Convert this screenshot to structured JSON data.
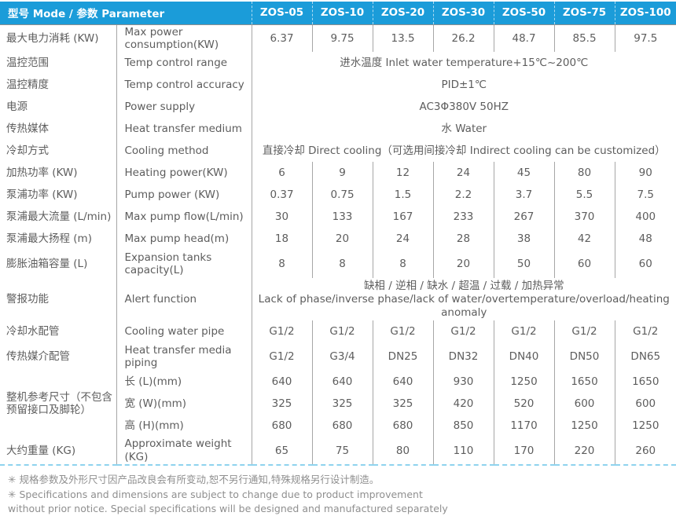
{
  "table": {
    "header": {
      "param_label": "型号 Mode / 参数 Parameter",
      "models": [
        "ZOS-05",
        "ZOS-10",
        "ZOS-20",
        "ZOS-30",
        "ZOS-50",
        "ZOS-75",
        "ZOS-100"
      ]
    },
    "rows": {
      "max_power": {
        "zh": "最大电力消耗 (KW)",
        "en": "Max power consumption(KW)",
        "values": [
          "6.37",
          "9.75",
          "13.5",
          "26.2",
          "48.7",
          "85.5",
          "97.5"
        ]
      },
      "temp_range": {
        "zh": "温控范围",
        "en": "Temp control range",
        "span": "进水温度 Inlet water temperature+15℃~200℃"
      },
      "temp_accuracy": {
        "zh": "温控精度",
        "en": "Temp control accuracy",
        "span": "PID±1℃"
      },
      "power_supply": {
        "zh": "电源",
        "en": "Power supply",
        "span": "AC3Φ380V 50HZ"
      },
      "heat_medium": {
        "zh": "传热媒体",
        "en": "Heat transfer medium",
        "span": "水 Water"
      },
      "cooling_method": {
        "zh": "冷却方式",
        "en": "Cooling method",
        "span": "直接冷却 Direct cooling（可选用间接冷却 Indirect cooling can be customized）"
      },
      "heating_power": {
        "zh": "加热功率 (KW)",
        "en": "Heating power(KW)",
        "values": [
          "6",
          "9",
          "12",
          "24",
          "45",
          "80",
          "90"
        ]
      },
      "pump_power": {
        "zh": "泵浦功率 (KW)",
        "en": "Pump power  (KW)",
        "values": [
          "0.37",
          "0.75",
          "1.5",
          "2.2",
          "3.7",
          "5.5",
          "7.5"
        ]
      },
      "max_pump_flow": {
        "zh": "泵浦最大流量 (L/min)",
        "en": "Max pump flow(L/min)",
        "values": [
          "30",
          "133",
          "167",
          "233",
          "267",
          "370",
          "400"
        ]
      },
      "max_pump_head": {
        "zh": "泵浦最大扬程 (m)",
        "en": "Max pump head(m)",
        "values": [
          "18",
          "20",
          "24",
          "28",
          "38",
          "42",
          "48"
        ]
      },
      "expansion_tank": {
        "zh": "膨胀油箱容量 (L)",
        "en": "Expansion tanks capacity(L)",
        "values": [
          "8",
          "8",
          "8",
          "20",
          "50",
          "60",
          "60"
        ]
      },
      "alert": {
        "zh": "警报功能",
        "en": "Alert function",
        "span_zh": "缺相 / 逆相 / 缺水 / 超温 / 过载 / 加热异常",
        "span_en": "Lack of phase/inverse phase/lack of water/overtemperature/overload/heating anomaly"
      },
      "cooling_pipe": {
        "zh": "冷却水配管",
        "en": "Cooling water pipe",
        "values": [
          "G1/2",
          "G1/2",
          "G1/2",
          "G1/2",
          "G1/2",
          "G1/2",
          "G1/2"
        ]
      },
      "media_piping": {
        "zh": "传热媒介配管",
        "en": "Heat transfer media piping",
        "values": [
          "G1/2",
          "G3/4",
          "DN25",
          "DN32",
          "DN40",
          "DN50",
          "DN65"
        ]
      },
      "dimensions": {
        "zh": "整机参考尺寸（不包含预留接口及脚轮）",
        "length": {
          "en": "长 (L)(mm)",
          "values": [
            "640",
            "640",
            "640",
            "930",
            "1250",
            "1650",
            "1650"
          ]
        },
        "width": {
          "en": "宽 (W)(mm)",
          "values": [
            "325",
            "325",
            "325",
            "420",
            "520",
            "600",
            "600"
          ]
        },
        "height": {
          "en": "高 (H)(mm)",
          "values": [
            "680",
            "680",
            "680",
            "850",
            "1170",
            "1250",
            "1250"
          ]
        }
      },
      "weight": {
        "zh": "大约重量 (KG)",
        "en": "Approximate weight (KG)",
        "values": [
          "65",
          "75",
          "80",
          "110",
          "170",
          "220",
          "260"
        ]
      }
    }
  },
  "notes": {
    "zh": "✳ 规格参数及外形尺寸因产品改良会有所变动,恕不另行通知,特殊规格另行设计制造。",
    "en": "✳ Specifications and dimensions are subject to change due to product improvement without prior notice. Special specifications will be designed and manufactured separately"
  },
  "colors": {
    "header_bg": "#1B9CD9",
    "header_text": "#FFFFFF",
    "body_text": "#5D5D5D",
    "divider": "#A6A6A6",
    "header_underline": "#8F8F8F",
    "bottom_dashed_line": "#8FD3EE",
    "notes_text": "#8F8F8F"
  }
}
